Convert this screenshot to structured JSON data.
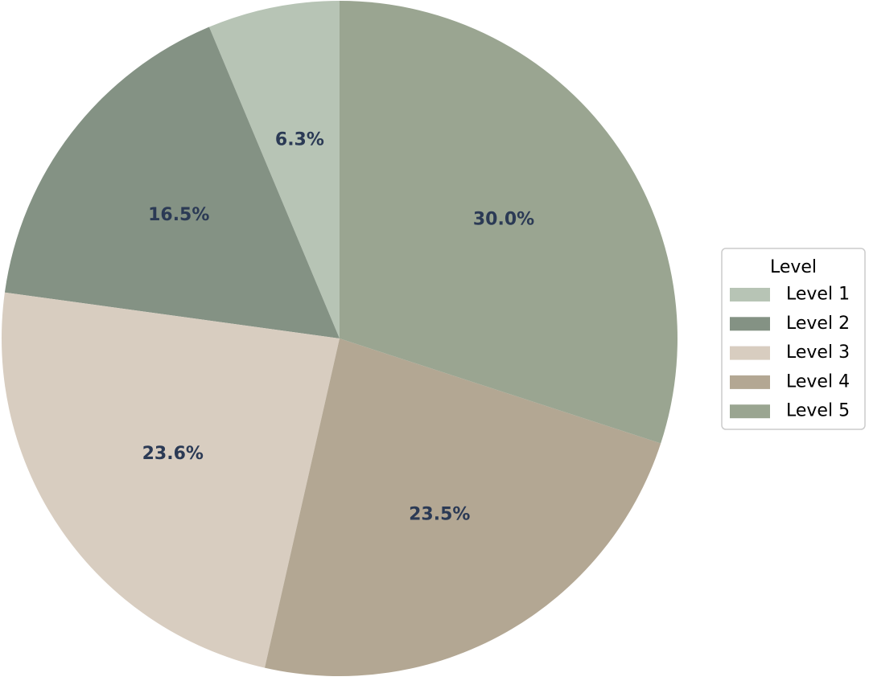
{
  "chart_data": {
    "type": "pie",
    "categories": [
      "Level 1",
      "Level 2",
      "Level 3",
      "Level 4",
      "Level 5"
    ],
    "values": [
      6.3,
      16.5,
      23.6,
      23.5,
      30.0
    ],
    "labels": [
      "6.3%",
      "16.5%",
      "23.6%",
      "23.5%",
      "30.0%"
    ],
    "colors": [
      "#b7c4b5",
      "#849284",
      "#d8cdc0",
      "#b3a793",
      "#9aa591"
    ],
    "label_color": "#2b3a55",
    "start_angle_deg": 90,
    "direction": "counterclockwise",
    "legend": {
      "title": "Level",
      "placement": "right"
    }
  }
}
